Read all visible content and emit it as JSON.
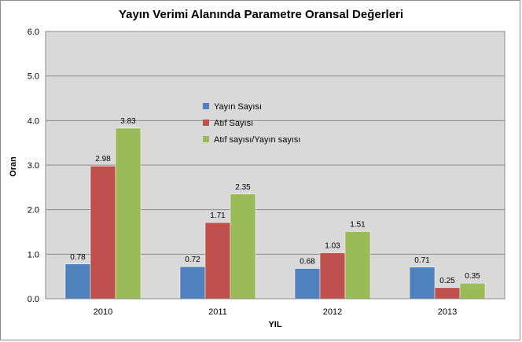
{
  "chart_data": {
    "type": "bar",
    "title": "Yayın Verimi Alanında Parametre Oransal Değerleri",
    "xlabel": "YIL",
    "ylabel": "Oran",
    "categories": [
      "2010",
      "2011",
      "2012",
      "2013"
    ],
    "ylim": [
      0,
      6
    ],
    "yticks": [
      "0.0",
      "1.0",
      "2.0",
      "3.0",
      "4.0",
      "5.0",
      "6.0"
    ],
    "grid": true,
    "legend_position": "center",
    "series": [
      {
        "name": "Yayın Sayısı",
        "color": "#4f81bd",
        "values": [
          0.78,
          0.72,
          0.68,
          0.71
        ],
        "labels": [
          "0.78",
          "0.72",
          "0.68",
          "0.71"
        ]
      },
      {
        "name": "Atıf Sayısı",
        "color": "#c0504d",
        "values": [
          2.98,
          1.71,
          1.03,
          0.25
        ],
        "labels": [
          "2.98",
          "1.71",
          "1.03",
          "0.25"
        ]
      },
      {
        "name": "Atıf sayısı/Yayın sayısı",
        "color": "#9bbb59",
        "values": [
          3.83,
          2.35,
          1.51,
          0.35
        ],
        "labels": [
          "3.83",
          "2.35",
          "1.51",
          "0.35"
        ]
      }
    ]
  }
}
